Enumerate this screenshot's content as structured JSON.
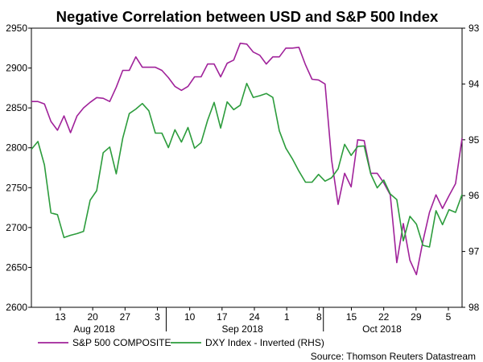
{
  "chart_data": {
    "type": "line",
    "title": "Negative Correlation between USD and S&P 500 Index",
    "source": "Source: Thomson Reuters Datastream",
    "x_tick_labels": [
      "13",
      "20",
      "27",
      "3",
      "10",
      "17",
      "24",
      "1",
      "8",
      "15",
      "22",
      "29",
      "5"
    ],
    "x_month_labels": [
      "Aug 2018",
      "Sep 2018",
      "Oct 2018"
    ],
    "y_left": {
      "ylim": [
        2600,
        2950
      ],
      "ticks": [
        2600,
        2650,
        2700,
        2750,
        2800,
        2850,
        2900,
        2950
      ]
    },
    "y_right": {
      "ylim": [
        98,
        93
      ],
      "inverted": true,
      "ticks": [
        93,
        94,
        95,
        96,
        97,
        98
      ]
    },
    "series": [
      {
        "name": "S&P 500 COMPOSITE",
        "axis": "left",
        "color": "#a0229a",
        "values": [
          2858,
          2858,
          2855,
          2833,
          2822,
          2840,
          2819,
          2840,
          2850,
          2857,
          2863,
          2862,
          2858,
          2876,
          2897,
          2897,
          2914,
          2901,
          2901,
          2901,
          2897,
          2888,
          2877,
          2872,
          2877,
          2889,
          2889,
          2905,
          2905,
          2889,
          2906,
          2910,
          2931,
          2930,
          2920,
          2916,
          2905,
          2914,
          2914,
          2925,
          2925,
          2926,
          2904,
          2886,
          2885,
          2880,
          2785,
          2729,
          2768,
          2751,
          2810,
          2809,
          2768,
          2768,
          2756,
          2741,
          2656,
          2705,
          2659,
          2641,
          2683,
          2719,
          2741,
          2724,
          2740,
          2755,
          2812
        ]
      },
      {
        "name": "DXY Index - Inverted (RHS)",
        "axis": "right",
        "color": "#2c9c3c",
        "values": [
          95.17,
          95.03,
          95.45,
          96.31,
          96.34,
          96.75,
          96.71,
          96.68,
          96.64,
          96.08,
          95.91,
          95.23,
          95.13,
          95.61,
          94.97,
          94.53,
          94.45,
          94.35,
          94.48,
          94.88,
          94.88,
          95.14,
          94.82,
          95.04,
          94.78,
          95.15,
          95.05,
          94.65,
          94.33,
          94.79,
          94.32,
          94.46,
          94.38,
          93.99,
          94.24,
          94.21,
          94.17,
          94.24,
          94.84,
          95.15,
          95.34,
          95.56,
          95.76,
          95.76,
          95.62,
          95.74,
          95.68,
          95.52,
          95.08,
          95.28,
          95.12,
          95.11,
          95.61,
          95.86,
          95.72,
          95.97,
          96.07,
          96.81,
          96.37,
          96.51,
          96.89,
          96.92,
          96.27,
          96.52,
          96.25,
          96.3,
          95.98
        ]
      }
    ]
  }
}
